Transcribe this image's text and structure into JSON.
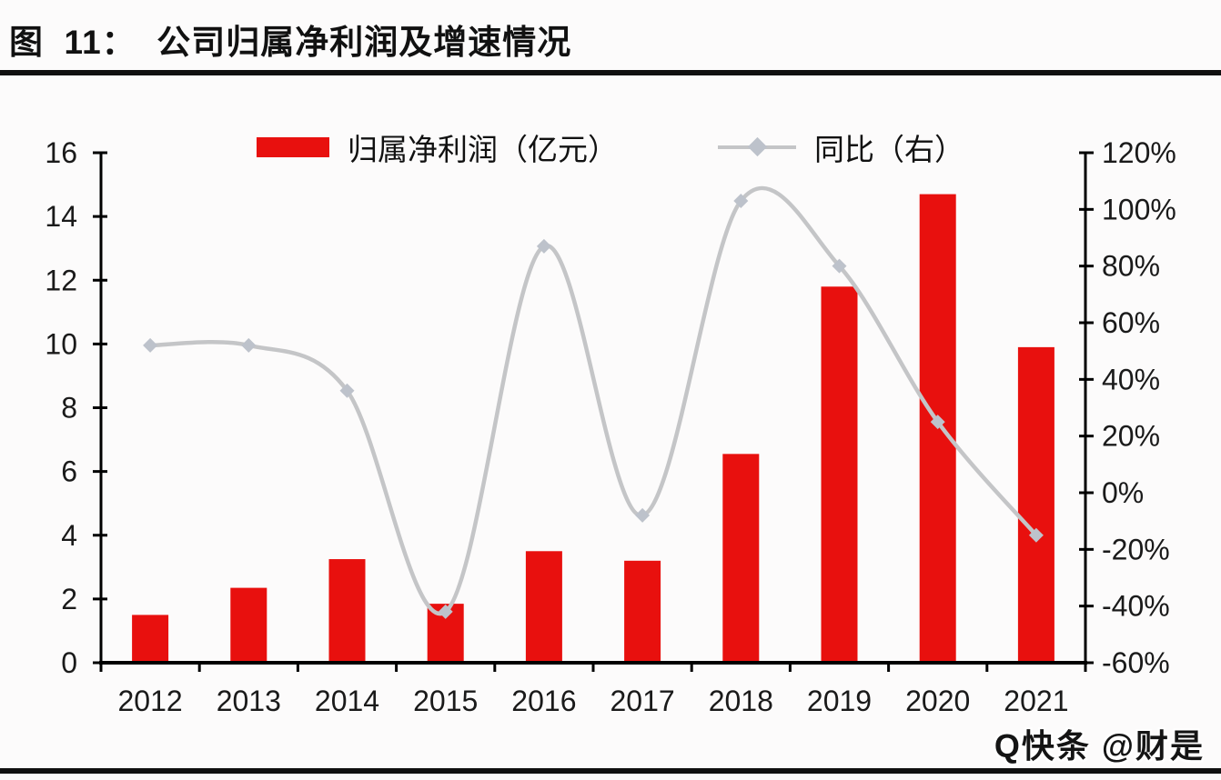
{
  "title": "图  11：  公司归属净利润及增速情况",
  "legend": {
    "bar_label": "归属净利润（亿元）",
    "line_label": "同比（右）"
  },
  "watermark": "Q快条 @财是",
  "colors": {
    "bar": "#e8100e",
    "line": "#c4c5c7",
    "marker": "#bdc2cb",
    "axis": "#000000",
    "text": "#1a1a1a"
  },
  "chart_data": {
    "type": "bar",
    "subtype": "bar+line, dual axis, smoothed line",
    "title": "公司归属净利润及增速情况",
    "categories": [
      "2012",
      "2013",
      "2014",
      "2015",
      "2016",
      "2017",
      "2018",
      "2019",
      "2020",
      "2021"
    ],
    "series": [
      {
        "name": "归属净利润（亿元）",
        "type": "bar",
        "axis": "left",
        "unit": "亿元",
        "color": "#e8100e",
        "values": [
          1.5,
          2.35,
          3.25,
          1.85,
          3.5,
          3.2,
          6.55,
          11.8,
          14.7,
          9.9
        ]
      },
      {
        "name": "同比（右）",
        "type": "line",
        "axis": "right",
        "unit": "%",
        "color": "#c4c5c7",
        "values": [
          52,
          52,
          36,
          -42,
          87,
          -8,
          103,
          80,
          25,
          -15
        ]
      }
    ],
    "left_axis": {
      "min": 0,
      "max": 16,
      "ticks": [
        0,
        2,
        4,
        6,
        8,
        10,
        12,
        14,
        16
      ]
    },
    "right_axis": {
      "min": -60,
      "max": 120,
      "ticks": [
        -60,
        -40,
        -20,
        0,
        20,
        40,
        60,
        80,
        100,
        120
      ],
      "tick_labels": [
        "-60%",
        "-40%",
        "-20%",
        "0%",
        "20%",
        "40%",
        "60%",
        "80%",
        "100%",
        "120%"
      ]
    },
    "legend_position": "top-center",
    "grid": false,
    "smooth_line": true
  }
}
